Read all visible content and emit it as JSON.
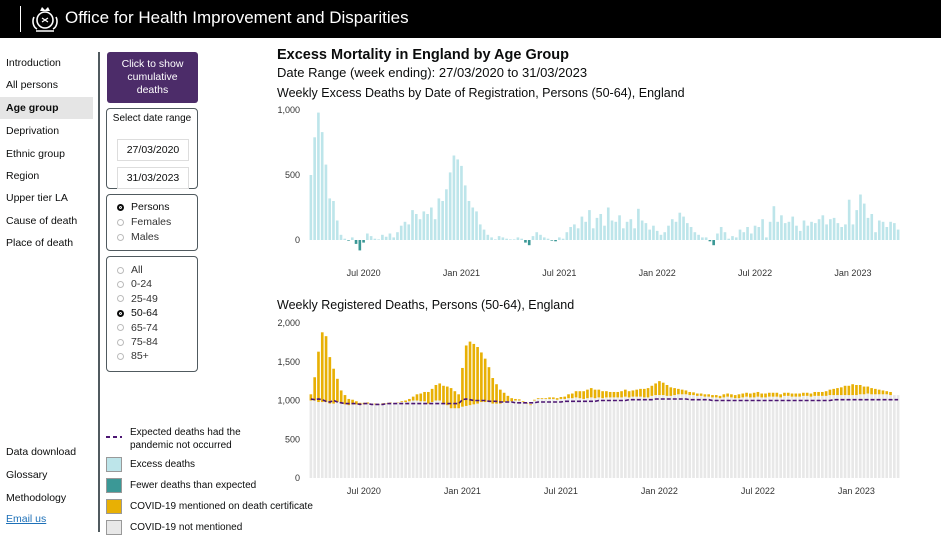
{
  "header": {
    "org_name": "Office for Health Improvement and Disparities"
  },
  "nav": {
    "items": [
      "Introduction",
      "All persons",
      "Age group",
      "Deprivation",
      "Ethnic group",
      "Region",
      "Upper tier LA",
      "Cause of death",
      "Place of death"
    ],
    "active": "Age group",
    "bottom": [
      "Data download",
      "Glossary",
      "Methodology"
    ],
    "email": "Email us"
  },
  "controls": {
    "cumulative_button": "Click to show cumulative deaths",
    "date_range_label": "Select date range",
    "date_start": "27/03/2020",
    "date_end": "31/03/2023",
    "sex_options": [
      "Persons",
      "Females",
      "Males"
    ],
    "sex_selected": "Persons",
    "age_options": [
      "All",
      "0-24",
      "25-49",
      "50-64",
      "65-74",
      "75-84",
      "85+"
    ],
    "age_selected": "50-64"
  },
  "legend": {
    "expected": "Expected deaths had the pandemic not occurred",
    "excess": "Excess deaths",
    "fewer": "Fewer deaths than expected",
    "covid": "COVID-19 mentioned on death certificate",
    "not_covid": "COVID-19 not mentioned"
  },
  "colors": {
    "excess": "#bde5ea",
    "fewer": "#3b9896",
    "covid": "#e8b004",
    "not_covid": "#e8e8e8",
    "expected_line": "#4c1673",
    "brand_purple": "#4c2c69"
  },
  "main": {
    "title": "Excess Mortality in England by Age Group",
    "subtitle": "Date Range (week ending): 27/03/2020 to 31/03/2023"
  },
  "chart_data": [
    {
      "type": "bar",
      "title": "Weekly Excess Deaths by Date of Registration, Persons (50-64), England",
      "ylim": [
        -100,
        1000
      ],
      "yticks": [
        0,
        500,
        1000
      ],
      "ytick_labels": [
        "0",
        "500",
        "1,000"
      ],
      "xtick_labels": [
        "Jul 2020",
        "Jan 2021",
        "Jul 2021",
        "Jan 2022",
        "Jul 2022",
        "Jan 2023"
      ],
      "xtick_weeks": [
        14,
        40,
        66,
        92,
        118,
        144
      ],
      "series": [
        {
          "name": "Excess deaths",
          "values": [
            500,
            790,
            980,
            830,
            580,
            320,
            300,
            150,
            40,
            10,
            -5,
            20,
            -30,
            -80,
            -20,
            50,
            30,
            10,
            5,
            40,
            25,
            50,
            20,
            60,
            110,
            140,
            120,
            230,
            200,
            160,
            220,
            200,
            250,
            160,
            320,
            300,
            390,
            520,
            650,
            620,
            570,
            420,
            300,
            250,
            220,
            120,
            80,
            40,
            20,
            5,
            30,
            20,
            10,
            5,
            5,
            20,
            10,
            -20,
            -40,
            30,
            60,
            40,
            20,
            10,
            -5,
            -10,
            20,
            10,
            60,
            100,
            120,
            90,
            180,
            140,
            230,
            90,
            170,
            200,
            110,
            250,
            150,
            140,
            190,
            90,
            140,
            160,
            90,
            240,
            150,
            130,
            80,
            110,
            70,
            40,
            60,
            110,
            160,
            140,
            210,
            180,
            130,
            100,
            60,
            40,
            20,
            20,
            -10,
            -40,
            50,
            100,
            60,
            10,
            30,
            20,
            80,
            60,
            100,
            50,
            110,
            100,
            160,
            20,
            140,
            260,
            140,
            190,
            130,
            140,
            180,
            110,
            70,
            150,
            110,
            140,
            130,
            160,
            190,
            120,
            160,
            170,
            130,
            100,
            120,
            310,
            120,
            230,
            350,
            280,
            170,
            200,
            60,
            150,
            140,
            100,
            140,
            130,
            80
          ]
        }
      ]
    },
    {
      "type": "bar",
      "title": "Weekly Registered Deaths, Persons (50-64), England",
      "ylim": [
        0,
        2000
      ],
      "yticks": [
        0,
        500,
        1000,
        1500,
        2000
      ],
      "ytick_labels": [
        "0",
        "500",
        "1,000",
        "1,500",
        "2,000"
      ],
      "xtick_labels": [
        "Jul 2020",
        "Jan 2021",
        "Jul 2021",
        "Jan 2022",
        "Jul 2022",
        "Jan 2023"
      ],
      "xtick_weeks": [
        14,
        40,
        66,
        92,
        118,
        144
      ],
      "series": [
        {
          "name": "COVID-19 not mentioned",
          "values": [
            1000,
            1000,
            980,
            980,
            980,
            960,
            960,
            980,
            960,
            950,
            940,
            950,
            950,
            940,
            950,
            960,
            950,
            950,
            950,
            960,
            960,
            970,
            960,
            970,
            980,
            980,
            990,
            1000,
            1000,
            990,
            990,
            960,
            980,
            1000,
            1000,
            960,
            940,
            900,
            900,
            900,
            920,
            930,
            940,
            950,
            960,
            980,
            980,
            980,
            960,
            960,
            960,
            980,
            990,
            990,
            1000,
            1000,
            980,
            960,
            940,
            1000,
            1020,
            1020,
            1020,
            1020,
            1020,
            1010,
            1020,
            1020,
            1030,
            1030,
            1040,
            1030,
            1020,
            1030,
            1040,
            1030,
            1040,
            1030,
            1040,
            1040,
            1040,
            1040,
            1040,
            1050,
            1040,
            1050,
            1050,
            1050,
            1040,
            1040,
            1060,
            1070,
            1070,
            1070,
            1060,
            1060,
            1070,
            1080,
            1080,
            1080,
            1070,
            1070,
            1060,
            1060,
            1050,
            1050,
            1040,
            1040,
            1030,
            1040,
            1050,
            1040,
            1030,
            1030,
            1040,
            1050,
            1040,
            1040,
            1050,
            1040,
            1040,
            1050,
            1050,
            1050,
            1040,
            1060,
            1060,
            1050,
            1050,
            1050,
            1060,
            1060,
            1050,
            1060,
            1060,
            1060,
            1060,
            1070,
            1070,
            1070,
            1070,
            1070,
            1070,
            1070,
            1070,
            1080,
            1080,
            1090,
            1080,
            1080,
            1080,
            1080,
            1080,
            1070,
            1070,
            1070
          ]
        },
        {
          "name": "COVID-19 mentioned on death certificate",
          "values": [
            80,
            300,
            650,
            900,
            850,
            600,
            450,
            300,
            170,
            120,
            80,
            60,
            40,
            30,
            20,
            15,
            10,
            10,
            5,
            5,
            5,
            5,
            5,
            5,
            10,
            20,
            30,
            50,
            80,
            100,
            120,
            150,
            170,
            200,
            220,
            230,
            240,
            260,
            220,
            180,
            500,
            780,
            820,
            780,
            730,
            640,
            560,
            450,
            330,
            250,
            180,
            120,
            70,
            40,
            20,
            15,
            10,
            10,
            10,
            10,
            10,
            10,
            10,
            20,
            20,
            20,
            25,
            30,
            50,
            60,
            80,
            90,
            100,
            110,
            120,
            110,
            100,
            90,
            80,
            70,
            70,
            70,
            80,
            90,
            80,
            80,
            90,
            100,
            110,
            120,
            130,
            150,
            180,
            160,
            140,
            110,
            90,
            70,
            60,
            50,
            40,
            35,
            30,
            30,
            30,
            30,
            30,
            30,
            30,
            40,
            40,
            40,
            40,
            50,
            50,
            50,
            50,
            60,
            60,
            50,
            50,
            50,
            50,
            50,
            40,
            40,
            40,
            40,
            40,
            40,
            40,
            40,
            40,
            50,
            50,
            50,
            60,
            70,
            80,
            90,
            100,
            120,
            120,
            140,
            130,
            120,
            100,
            90,
            80,
            70,
            60,
            50,
            40,
            40
          ]
        },
        {
          "name": "Expected deaths had the pandemic not occurred",
          "values": [
            1020,
            1010,
            1020,
            1010,
            990,
            980,
            1000,
            980,
            970,
            960,
            960,
            960,
            960,
            950,
            960,
            960,
            950,
            950,
            950,
            950,
            960,
            960,
            960,
            960,
            960,
            960,
            960,
            960,
            960,
            960,
            960,
            960,
            960,
            960,
            960,
            960,
            960,
            960,
            960,
            960,
            1010,
            1020,
            1010,
            1000,
            1000,
            1000,
            1000,
            990,
            990,
            990,
            980,
            980,
            980,
            980,
            970,
            970,
            970,
            970,
            970,
            970,
            980,
            980,
            980,
            980,
            980,
            980,
            980,
            990,
            990,
            990,
            990,
            990,
            990,
            990,
            990,
            990,
            1000,
            1000,
            1000,
            1000,
            1000,
            1000,
            1000,
            1000,
            1010,
            1010,
            1010,
            1010,
            1010,
            1010,
            1010,
            1020,
            1020,
            1020,
            1020,
            1020,
            1020,
            1020,
            1020,
            1020,
            1010,
            1010,
            1010,
            1010,
            1010,
            1010,
            1000,
            1000,
            1000,
            1000,
            1000,
            1000,
            1000,
            1000,
            1000,
            1000,
            1000,
            1000,
            1000,
            1000,
            1000,
            1000,
            1000,
            1000,
            1000,
            1000,
            1000,
            1000,
            1000,
            1000,
            1000,
            1000,
            1000,
            1000,
            1000,
            1000,
            1000,
            1000,
            1010,
            1010,
            1010,
            1010,
            1010,
            1010,
            1010,
            1010,
            1010,
            1010,
            1010,
            1010,
            1010,
            1010,
            1010,
            1010,
            1010,
            1010
          ]
        }
      ]
    }
  ]
}
